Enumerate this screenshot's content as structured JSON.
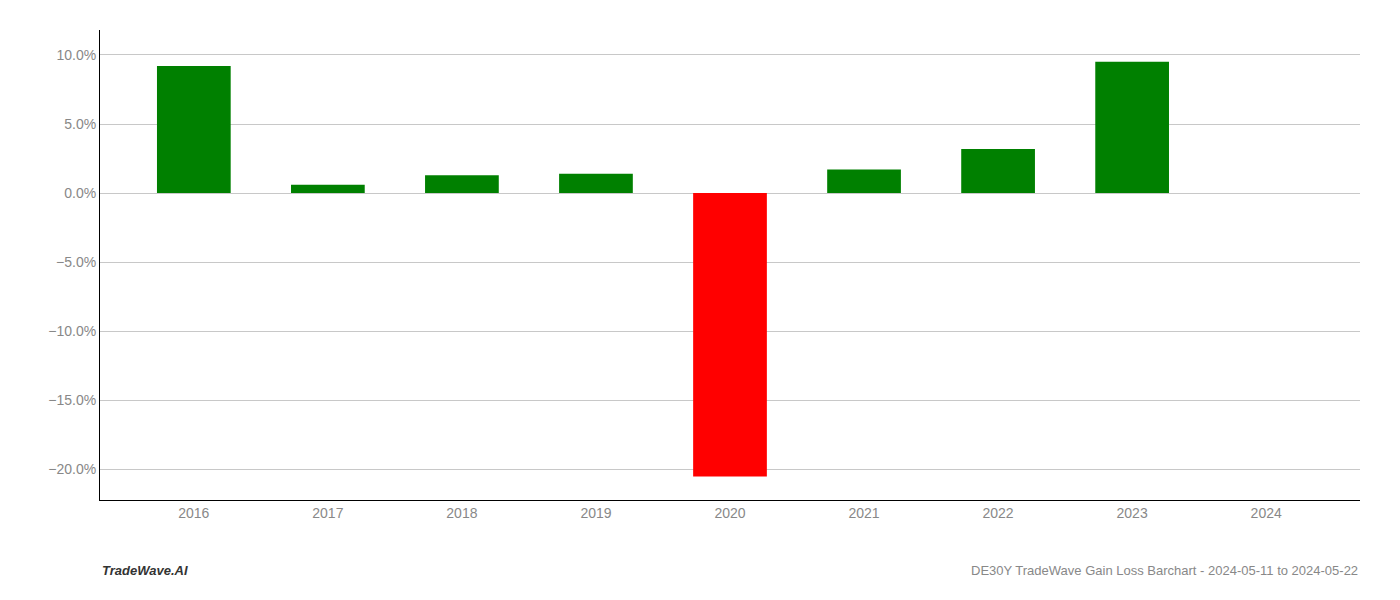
{
  "chart_data": {
    "type": "bar",
    "x": [
      2016,
      2017,
      2018,
      2019,
      2020,
      2021,
      2022,
      2023,
      2024
    ],
    "values": [
      0.092,
      0.006,
      0.013,
      0.014,
      -0.205,
      0.017,
      0.032,
      0.095,
      null
    ],
    "colors": [
      "#008000",
      "#008000",
      "#008000",
      "#008000",
      "#ff0000",
      "#008000",
      "#008000",
      "#008000",
      null
    ],
    "xlim": [
      2015.3,
      2024.7
    ],
    "xticks": [
      2016,
      2017,
      2018,
      2019,
      2020,
      2021,
      2022,
      2023,
      2024
    ],
    "ylim": [
      -0.222,
      0.118
    ],
    "yticks": [
      {
        "value": -0.2,
        "label": "−20.0%"
      },
      {
        "value": -0.15,
        "label": "−15.0%"
      },
      {
        "value": -0.1,
        "label": "−10.0%"
      },
      {
        "value": -0.05,
        "label": "−5.0%"
      },
      {
        "value": 0.0,
        "label": "0.0%"
      },
      {
        "value": 0.05,
        "label": "5.0%"
      },
      {
        "value": 0.1,
        "label": "10.0%"
      }
    ],
    "grid": true,
    "annotations": [
      "TradeWave.AI",
      "DE30Y TradeWave Gain Loss Barchart - 2024-05-11 to 2024-05-22"
    ]
  }
}
